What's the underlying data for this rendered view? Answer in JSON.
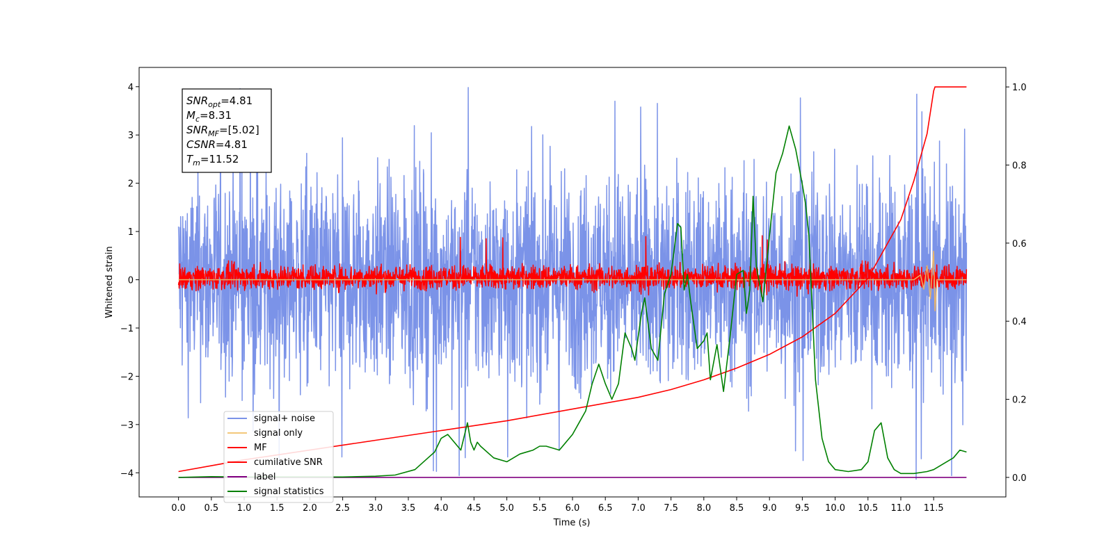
{
  "chart_data": {
    "type": "line",
    "xlabel": "Time (s)",
    "ylabel_left": "Whitened strain",
    "ylabel_right": "",
    "xlim": [
      -0.6,
      12.6
    ],
    "ylim_left": [
      -4.5,
      4.4
    ],
    "ylim_right": [
      -0.05,
      1.05
    ],
    "x_ticks": [
      "0.0",
      "0.5",
      "1.0",
      "1.5",
      "2.0",
      "2.5",
      "3.0",
      "3.5",
      "4.0",
      "4.5",
      "5.0",
      "5.5",
      "6.0",
      "6.5",
      "7.0",
      "7.5",
      "8.0",
      "8.5",
      "9.0",
      "9.5",
      "10.0",
      "10.5",
      "11.0",
      "11.5"
    ],
    "y_ticks_left": [
      "4",
      "3",
      "2",
      "1",
      "0",
      "−1",
      "−2",
      "−3",
      "−4"
    ],
    "y_ticks_right": [
      "1.0",
      "0.8",
      "0.6",
      "0.4",
      "0.2",
      "0.0"
    ],
    "grid": false,
    "legend_position": "lower-left",
    "stats_box": [
      {
        "main": "SNR",
        "sub": "opt",
        "value": "=4.81"
      },
      {
        "main": "M",
        "sub": "c",
        "value": "=8.31"
      },
      {
        "main": "SNR",
        "sub": "MF",
        "value": "=[5.02]"
      },
      {
        "main": "CSNR",
        "sub": "",
        "value": "=4.81"
      },
      {
        "main": "T",
        "sub": "m",
        "value": "=11.52"
      }
    ],
    "series": [
      {
        "name": "signal+ noise",
        "axis": "left",
        "color": "#7b93e8",
        "x_range": [
          0.0,
          12.0
        ],
        "typical_range": [
          -2.5,
          2.4
        ],
        "peak_max": 4.0,
        "peak_min": -4.15
      },
      {
        "name": "signal only",
        "axis": "left",
        "color": "#f3c77a",
        "x": [
          0.0,
          11.2,
          11.3,
          11.35,
          11.4,
          11.45,
          11.5,
          11.52,
          11.55,
          12.0
        ],
        "y": [
          0.0,
          0.0,
          0.1,
          -0.2,
          0.3,
          -0.4,
          0.6,
          -0.65,
          0.0,
          0.0
        ]
      },
      {
        "name": "MF",
        "axis": "left",
        "color": "#ff0000",
        "x_range": [
          0.0,
          12.0
        ],
        "typical_range": [
          -0.3,
          0.4
        ],
        "peak_max": 0.95,
        "peak_min": -0.35
      },
      {
        "name": "cumilative SNR",
        "axis": "right",
        "color": "#ff0000",
        "x": [
          0.0,
          0.5,
          1.0,
          2.0,
          3.0,
          4.0,
          5.0,
          6.0,
          7.0,
          7.5,
          8.0,
          8.5,
          9.0,
          9.5,
          10.0,
          10.5,
          11.0,
          11.2,
          11.4,
          11.5,
          11.52,
          12.0
        ],
        "y": [
          0.015,
          0.03,
          0.045,
          0.07,
          0.095,
          0.12,
          0.145,
          0.175,
          0.205,
          0.225,
          0.25,
          0.28,
          0.315,
          0.36,
          0.42,
          0.51,
          0.66,
          0.76,
          0.88,
          0.99,
          1.0,
          1.0
        ]
      },
      {
        "name": "label",
        "axis": "right",
        "color": "#800080",
        "x": [
          0.0,
          12.0
        ],
        "y": [
          0.0,
          0.0
        ]
      },
      {
        "name": "signal statistics",
        "axis": "right",
        "color": "#008000",
        "x": [
          0.0,
          0.5,
          1.0,
          1.5,
          2.0,
          2.5,
          3.0,
          3.3,
          3.6,
          3.8,
          3.9,
          4.0,
          4.1,
          4.3,
          4.4,
          4.45,
          4.5,
          4.55,
          4.6,
          4.8,
          5.0,
          5.2,
          5.4,
          5.5,
          5.6,
          5.8,
          5.9,
          6.0,
          6.1,
          6.2,
          6.3,
          6.4,
          6.5,
          6.6,
          6.7,
          6.8,
          6.9,
          6.95,
          7.05,
          7.1,
          7.2,
          7.3,
          7.4,
          7.5,
          7.6,
          7.65,
          7.7,
          7.75,
          7.8,
          7.9,
          8.0,
          8.05,
          8.1,
          8.2,
          8.3,
          8.4,
          8.5,
          8.6,
          8.65,
          8.7,
          8.75,
          8.8,
          8.9,
          9.0,
          9.1,
          9.2,
          9.3,
          9.4,
          9.5,
          9.55,
          9.6,
          9.7,
          9.8,
          9.9,
          10.0,
          10.2,
          10.4,
          10.5,
          10.6,
          10.7,
          10.8,
          10.9,
          11.0,
          11.2,
          11.4,
          11.5,
          11.7,
          11.8,
          11.9,
          12.0
        ],
        "y": [
          0.0,
          0.002,
          0.001,
          0.001,
          0.001,
          0.001,
          0.003,
          0.006,
          0.02,
          0.05,
          0.065,
          0.1,
          0.11,
          0.07,
          0.14,
          0.09,
          0.07,
          0.09,
          0.08,
          0.05,
          0.04,
          0.06,
          0.07,
          0.08,
          0.08,
          0.07,
          0.09,
          0.11,
          0.14,
          0.17,
          0.24,
          0.29,
          0.24,
          0.2,
          0.24,
          0.37,
          0.33,
          0.3,
          0.42,
          0.46,
          0.33,
          0.3,
          0.47,
          0.52,
          0.65,
          0.64,
          0.48,
          0.52,
          0.45,
          0.33,
          0.35,
          0.37,
          0.25,
          0.34,
          0.22,
          0.36,
          0.52,
          0.53,
          0.42,
          0.48,
          0.72,
          0.54,
          0.45,
          0.62,
          0.78,
          0.83,
          0.9,
          0.84,
          0.75,
          0.7,
          0.62,
          0.25,
          0.1,
          0.04,
          0.02,
          0.015,
          0.02,
          0.04,
          0.12,
          0.14,
          0.05,
          0.02,
          0.01,
          0.01,
          0.015,
          0.02,
          0.04,
          0.05,
          0.07,
          0.065
        ]
      }
    ]
  }
}
